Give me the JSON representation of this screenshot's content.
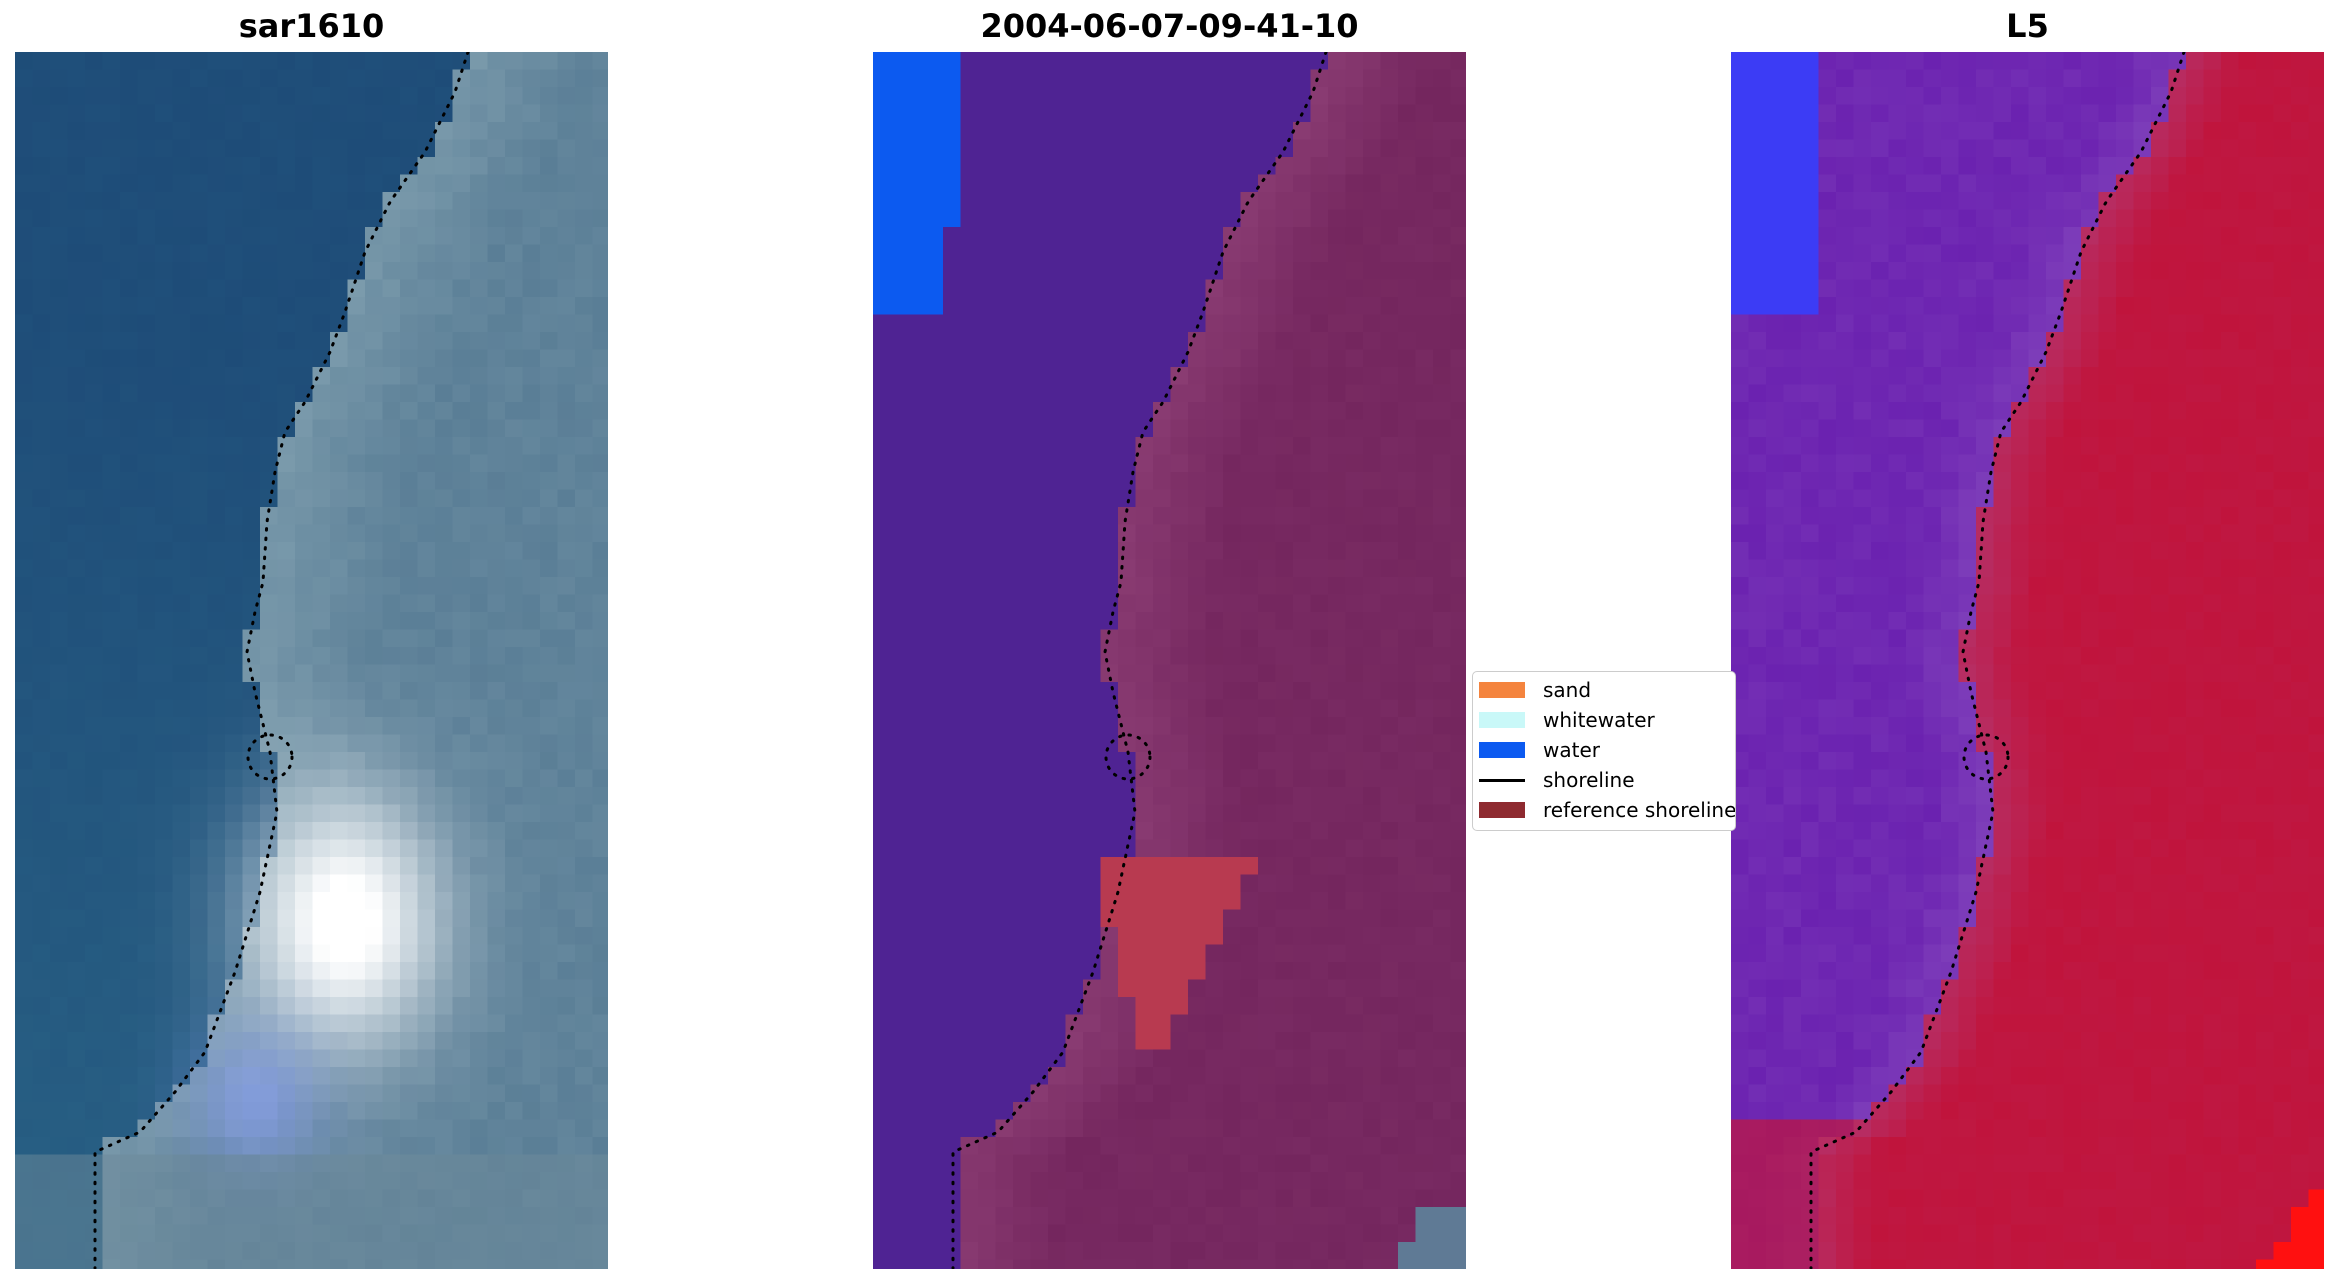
{
  "panels": [
    {
      "title": "sar1610"
    },
    {
      "title": "2004-06-07-09-41-10"
    },
    {
      "title": "L5"
    }
  ],
  "legend": {
    "items": [
      {
        "label": "sand",
        "color": "#f4843e",
        "kind": "patch"
      },
      {
        "label": "whitewater",
        "color": "#c9f8f8",
        "kind": "patch"
      },
      {
        "label": "water",
        "color": "#0c5af0",
        "kind": "patch"
      },
      {
        "label": "shoreline",
        "color": "#000000",
        "kind": "line"
      },
      {
        "label": "reference shoreline",
        "color": "#8e2a30",
        "kind": "patch"
      }
    ]
  },
  "colors": {
    "rgb_water": "#1e4c78",
    "rgb_land": "#5a7e96",
    "class_water": "#4f2393",
    "class_land": "#74265e",
    "class_blue": "#0c5af0",
    "class_sand": "#b83a50",
    "mndwi_water": "#6b22b0",
    "mndwi_land": "#c0143c",
    "mndwi_blue": "#3c3cf5",
    "shoreline": "#000000"
  }
}
